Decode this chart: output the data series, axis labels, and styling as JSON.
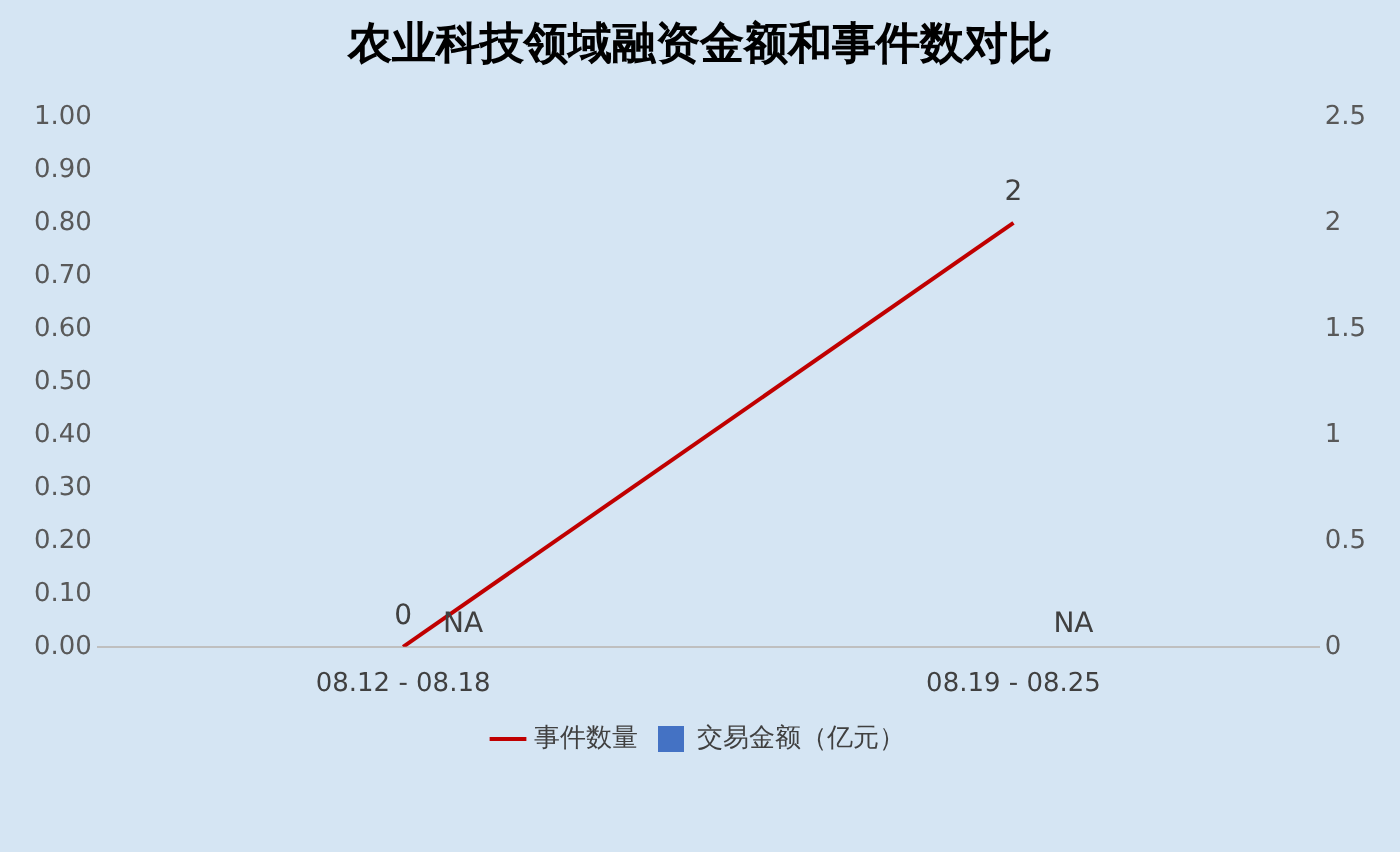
{
  "chart_data": {
    "type": "bar",
    "title": "农业科技领域融资金额和事件数对比",
    "categories": [
      "08.12 - 08.18",
      "08.19 - 08.25"
    ],
    "series": [
      {
        "name": "交易金额（亿元）",
        "color": "#4472c4",
        "values": [
          null,
          null
        ],
        "value_labels": [
          "NA",
          "NA"
        ]
      },
      {
        "name": "事件数量",
        "type": "line",
        "axis": "y2",
        "color": "#c00000",
        "values": [
          0,
          2
        ],
        "value_labels": [
          "0",
          "2"
        ]
      }
    ],
    "ylim": [
      0,
      1
    ],
    "yticks": [
      {
        "value": 0,
        "label": "0.00"
      },
      {
        "value": 0.1,
        "label": "0.10"
      },
      {
        "value": 0.2,
        "label": "0.20"
      },
      {
        "value": 0.3,
        "label": "0.30"
      },
      {
        "value": 0.4,
        "label": "0.40"
      },
      {
        "value": 0.5,
        "label": "0.50"
      },
      {
        "value": 0.6,
        "label": "0.60"
      },
      {
        "value": 0.7,
        "label": "0.70"
      },
      {
        "value": 0.8,
        "label": "0.80"
      },
      {
        "value": 0.9,
        "label": "0.90"
      },
      {
        "value": 1,
        "label": "1.00"
      }
    ],
    "y2lim": [
      0,
      2.5
    ],
    "y2ticks": [
      0,
      0.5,
      1,
      1.5,
      2,
      2.5
    ],
    "grid": false,
    "legend": "bottom",
    "marker": "none"
  }
}
